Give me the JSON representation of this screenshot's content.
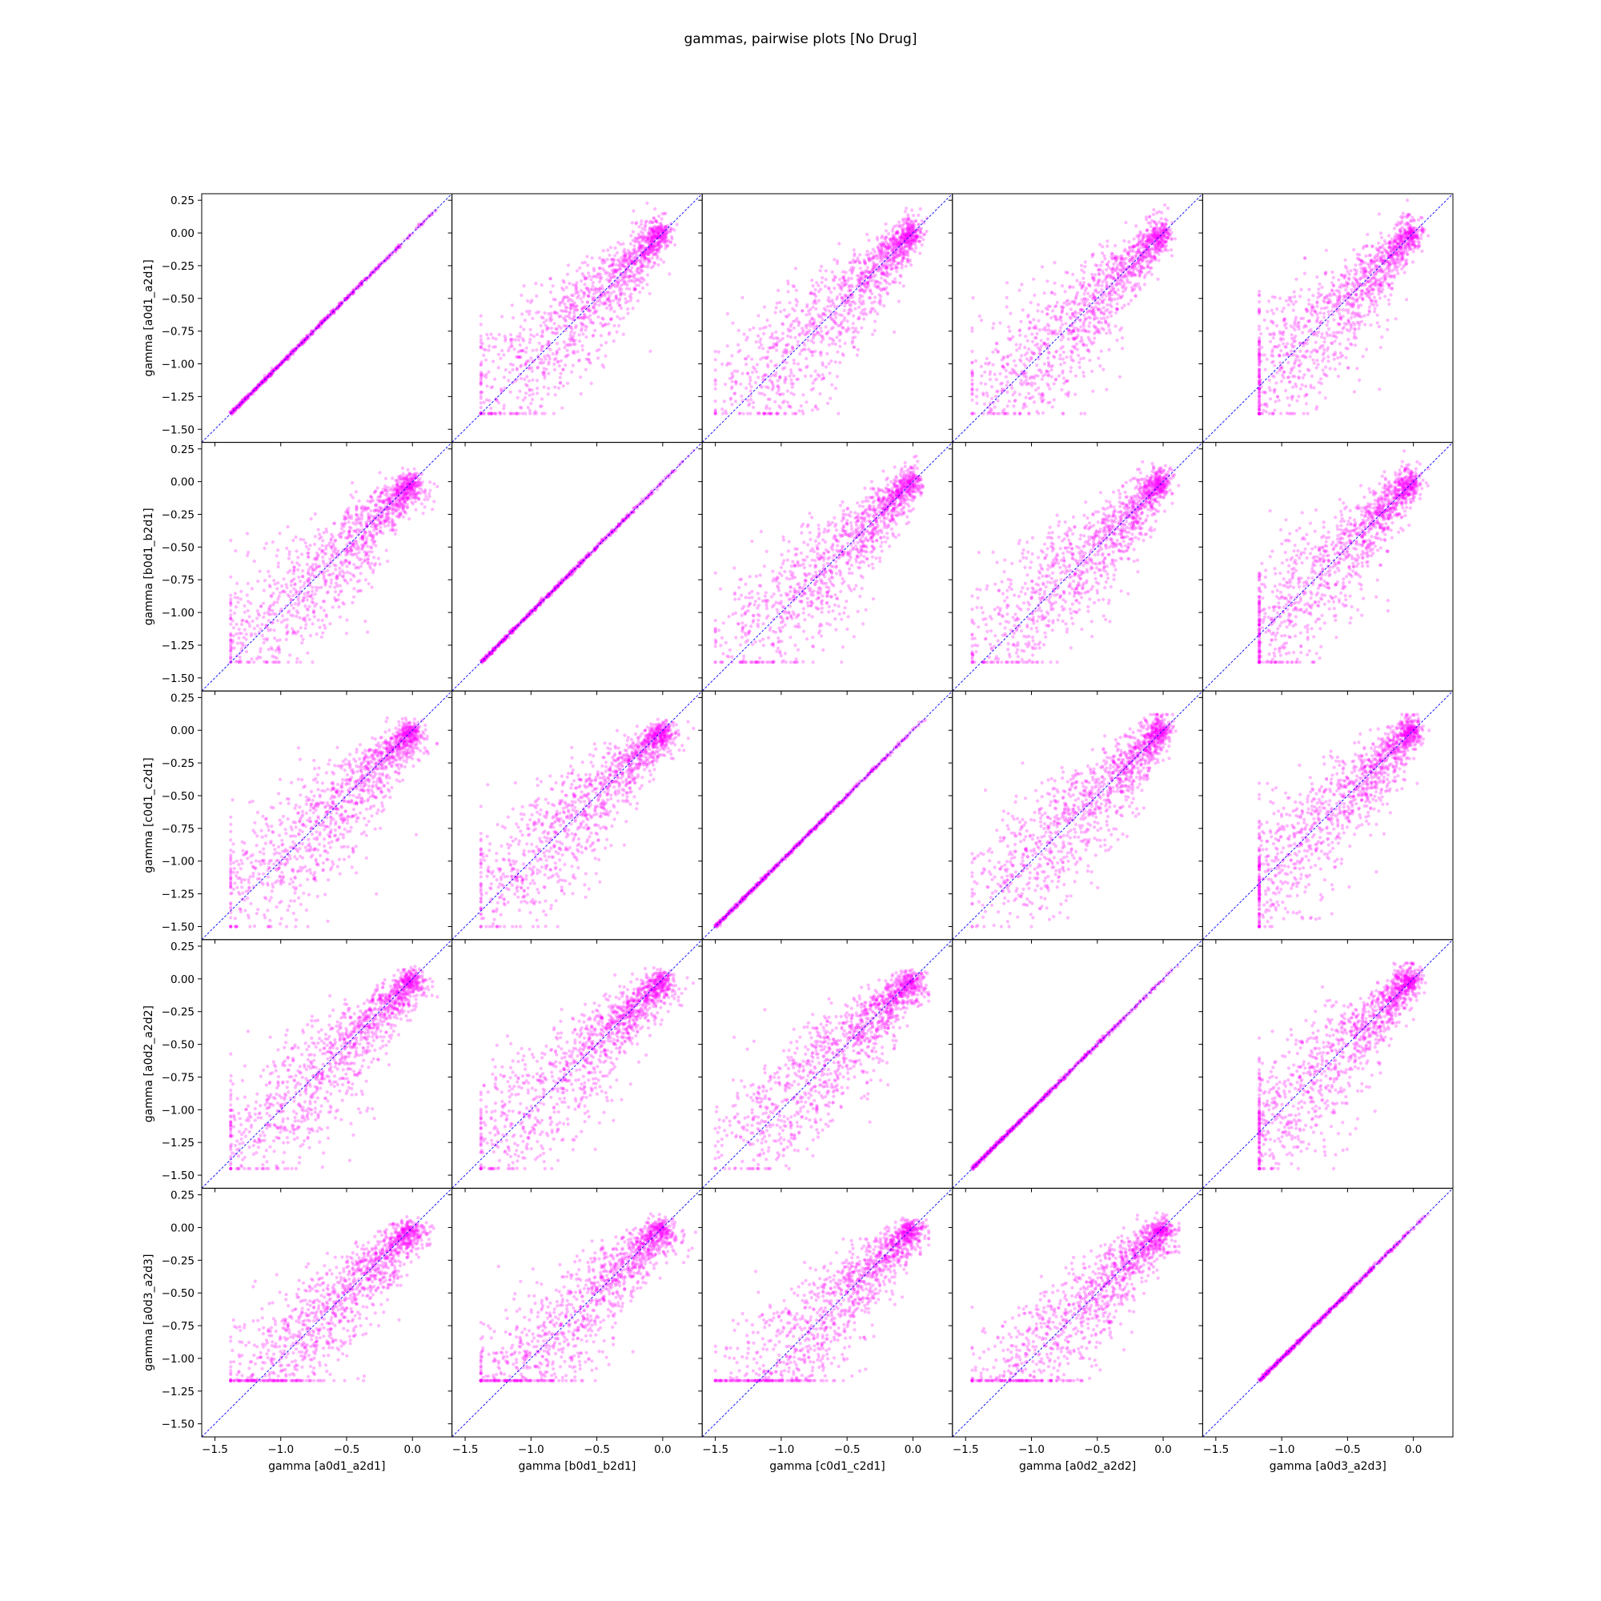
{
  "figure_title": "gammas, pairwise plots [No Drug]",
  "colors": {
    "points": "#ff00ff",
    "diagonal": "#0000ff",
    "frame": "#000000"
  },
  "chart_data": {
    "type": "scatter",
    "layout": "pairwise-matrix",
    "variables": [
      "a0d1_a2d1",
      "b0d1_b2d1",
      "c0d1_c2d1",
      "a0d2_a2d2",
      "a0d3_a2d3"
    ],
    "xlabels": [
      "gamma [a0d1_a2d1]",
      "gamma [b0d1_b2d1]",
      "gamma [c0d1_c2d1]",
      "gamma [a0d2_a2d2]",
      "gamma [a0d3_a2d3]"
    ],
    "ylabels": [
      "gamma [a0d1_a2d1]",
      "gamma [b0d1_b2d1]",
      "gamma [c0d1_c2d1]",
      "gamma [a0d2_a2d2]",
      "gamma [a0d3_a2d3]"
    ],
    "xlim": [
      -1.6,
      0.3
    ],
    "ylim": [
      -1.6,
      0.3
    ],
    "xticks": [
      -1.5,
      -1.0,
      -0.5,
      0.0
    ],
    "xtick_labels": [
      "−1.5",
      "−1.0",
      "−0.5",
      "0.0"
    ],
    "yticks": [
      -1.5,
      -1.25,
      -1.0,
      -0.75,
      -0.5,
      -0.25,
      0.0,
      0.25
    ],
    "ytick_labels": [
      "−1.50",
      "−1.25",
      "−1.00",
      "−0.75",
      "−0.50",
      "−0.25",
      "0.00",
      "0.25"
    ],
    "reference_line": "y = x",
    "grid": false,
    "ranges": [
      {
        "var": "a0d1_a2d1",
        "min": -1.38,
        "max": 0.25
      },
      {
        "var": "b0d1_b2d1",
        "min": -1.38,
        "max": 0.25
      },
      {
        "var": "c0d1_c2d1",
        "min": -1.5,
        "max": 0.12
      },
      {
        "var": "a0d2_a2d2",
        "min": -1.45,
        "max": 0.12
      },
      {
        "var": "a0d3_a2d3",
        "min": -1.17,
        "max": 0.14
      }
    ]
  }
}
